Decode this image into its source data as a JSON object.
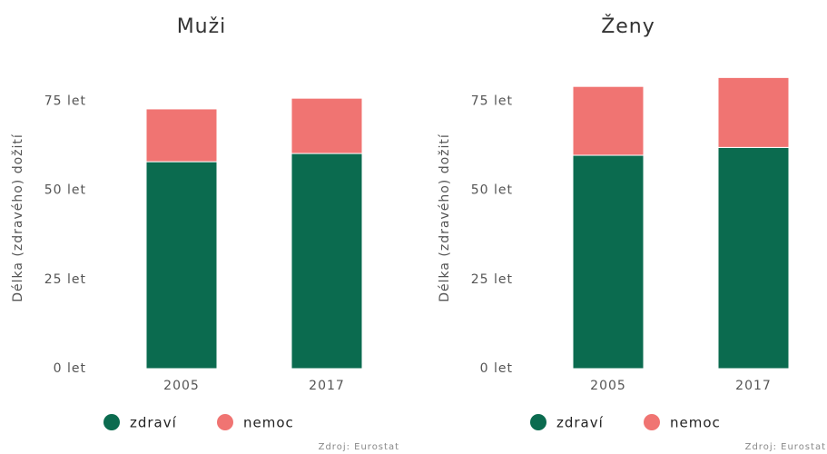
{
  "chart_data": [
    {
      "type": "bar",
      "stacked": true,
      "title": "Muži",
      "y_label": "Délka (zdravého) dožití",
      "categories": [
        "2005",
        "2017"
      ],
      "series": [
        {
          "name": "zdraví",
          "color": "#0b6b4f",
          "values": [
            58.0,
            60.3
          ]
        },
        {
          "name": "nemoc",
          "color": "#f07472",
          "values": [
            14.8,
            15.5
          ]
        }
      ],
      "ylim": [
        0,
        85
      ],
      "yticks": [
        {
          "value": 0,
          "label": "0 let"
        },
        {
          "value": 25,
          "label": "25 let"
        },
        {
          "value": 50,
          "label": "50 let"
        },
        {
          "value": 75,
          "label": "75 let"
        }
      ],
      "source": "Zdroj: Eurostat"
    },
    {
      "type": "bar",
      "stacked": true,
      "title": "Ženy",
      "y_label": "Délka (zdravého) dožití",
      "categories": [
        "2005",
        "2017"
      ],
      "series": [
        {
          "name": "zdraví",
          "color": "#0b6b4f",
          "values": [
            59.8,
            62.0
          ]
        },
        {
          "name": "nemoc",
          "color": "#f07472",
          "values": [
            19.3,
            19.6
          ]
        }
      ],
      "ylim": [
        0,
        85
      ],
      "yticks": [
        {
          "value": 0,
          "label": "0 let"
        },
        {
          "value": 25,
          "label": "25 let"
        },
        {
          "value": 50,
          "label": "50 let"
        },
        {
          "value": 75,
          "label": "75 let"
        }
      ],
      "source": "Zdroj: Eurostat"
    }
  ]
}
